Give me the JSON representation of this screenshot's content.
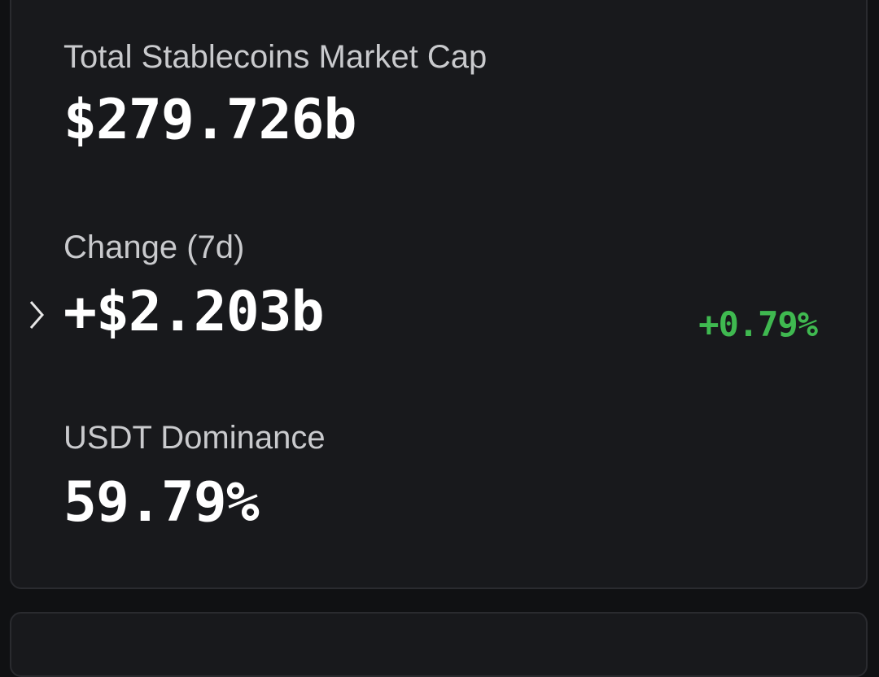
{
  "stats": [
    {
      "label": "Total Stablecoins Market Cap",
      "value": "$279.726b"
    },
    {
      "label": "Change (7d)",
      "value": "+$2.203b",
      "percent": "+0.79%"
    },
    {
      "label": "USDT Dominance",
      "value": "59.79%"
    }
  ]
}
